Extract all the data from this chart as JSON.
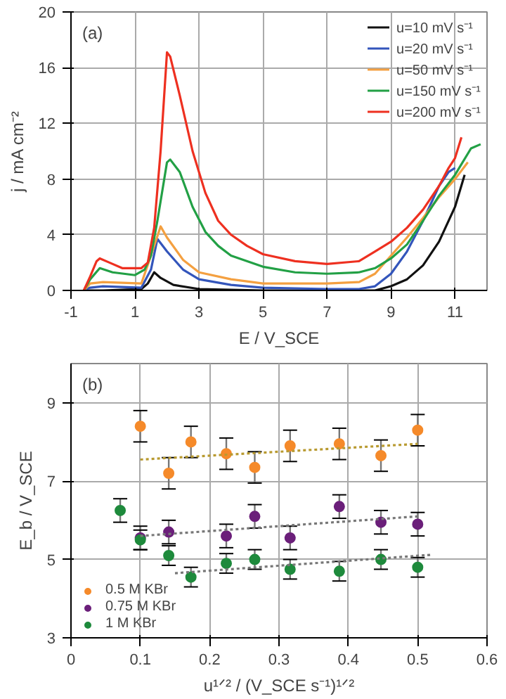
{
  "chart_data": [
    {
      "type": "line",
      "xlabel": "E / V_SCE",
      "ylabel": "j / mA cm⁻²",
      "annotations": [
        "(a)"
      ],
      "xlim": [
        -1,
        12
      ],
      "ylim": [
        0,
        20
      ],
      "xticks": [
        -1,
        1,
        3,
        5,
        7,
        9,
        11
      ],
      "yticks": [
        0,
        4,
        8,
        12,
        16,
        20
      ],
      "grid": true,
      "legend": "top right",
      "marker": "none",
      "line_style": "solid",
      "series": [
        {
          "name": "u=10 mV s⁻¹",
          "color": "#111111",
          "x": [
            -0.5,
            0,
            1.2,
            1.4,
            1.6,
            1.8,
            2.2,
            3,
            5,
            8.5,
            9,
            9.5,
            10,
            10.5,
            11,
            11.3
          ],
          "values": [
            0,
            0,
            0.1,
            0.5,
            1.3,
            0.9,
            0.4,
            0.1,
            0,
            0,
            0.3,
            0.8,
            1.8,
            3.5,
            6.0,
            8.3
          ]
        },
        {
          "name": "u=20 mV s⁻¹",
          "color": "#3355bb",
          "x": [
            -0.6,
            -0.4,
            0,
            1.2,
            1.5,
            1.7,
            2.0,
            2.5,
            3,
            4,
            5,
            7,
            8,
            8.5,
            9,
            9.5,
            10,
            10.5,
            10.8,
            11
          ],
          "values": [
            0,
            0.2,
            0.3,
            0.2,
            1.5,
            3.7,
            2.8,
            1.5,
            0.8,
            0.4,
            0.2,
            0.1,
            0.1,
            0.3,
            1.2,
            2.8,
            5.0,
            7.5,
            8.5,
            8.8
          ]
        },
        {
          "name": "u=50 mV s⁻¹",
          "color": "#f4a040",
          "x": [
            -0.6,
            -0.4,
            0,
            1.2,
            1.5,
            1.8,
            2.0,
            2.5,
            3,
            4,
            5,
            7,
            8,
            8.5,
            9,
            9.5,
            10,
            10.5,
            11,
            11.4
          ],
          "values": [
            0,
            0.5,
            0.6,
            0.5,
            2.5,
            4.6,
            3.8,
            2.2,
            1.3,
            0.8,
            0.5,
            0.5,
            0.6,
            1.2,
            2.5,
            3.8,
            5.2,
            6.7,
            8.0,
            9.2
          ]
        },
        {
          "name": "u=150 mV s⁻¹",
          "color": "#22a045",
          "x": [
            -0.6,
            -0.4,
            -0.1,
            0.3,
            1,
            1.3,
            1.5,
            1.7,
            2.0,
            2.1,
            2.4,
            2.8,
            3.2,
            3.6,
            4.0,
            5,
            6,
            7,
            8,
            8.5,
            9,
            9.5,
            10,
            10.5,
            11,
            11.5,
            11.8
          ],
          "values": [
            0,
            0.8,
            1.6,
            1.3,
            1.1,
            1.5,
            2.5,
            5,
            9.2,
            9.4,
            8.5,
            6,
            4.2,
            3.2,
            2.5,
            1.7,
            1.3,
            1.2,
            1.3,
            1.6,
            2.3,
            3.3,
            5.0,
            6.8,
            8.3,
            10.2,
            10.5
          ]
        },
        {
          "name": "u=200 mV s⁻¹",
          "color": "#ee3020",
          "x": [
            -0.6,
            -0.4,
            -0.2,
            -0.1,
            0.2,
            0.6,
            1.2,
            1.4,
            1.6,
            1.8,
            2.0,
            2.1,
            2.4,
            2.8,
            3.2,
            3.6,
            4.0,
            4.5,
            5,
            6,
            7,
            8,
            8.5,
            9,
            9.5,
            10,
            10.5,
            10.8,
            11.0,
            11.2
          ],
          "values": [
            0,
            1.0,
            2.1,
            2.3,
            2.0,
            1.6,
            1.6,
            2.0,
            4.5,
            10,
            17.1,
            16.8,
            14,
            10,
            7,
            5,
            4,
            3.2,
            2.6,
            2.1,
            1.9,
            2.1,
            2.8,
            3.5,
            4.5,
            5.8,
            7.5,
            8.8,
            9.5,
            11.0
          ]
        }
      ]
    },
    {
      "type": "scatter",
      "xlabel": "u¹ᐟ² / (V_SCE s⁻¹)¹ᐟ²",
      "ylabel": "E_b / V_SCE",
      "annotations": [
        "(b)"
      ],
      "xlim": [
        0,
        0.6
      ],
      "ylim": [
        3,
        10
      ],
      "xticks": [
        0,
        0.1,
        0.2,
        0.3,
        0.4,
        0.5,
        0.6
      ],
      "yticks": [
        3,
        5,
        7,
        9
      ],
      "grid": true,
      "legend": "bottom left",
      "marker": "circle",
      "series": [
        {
          "name": "0.5 M KBr",
          "color": "#f58a2a",
          "x": [
            0.1,
            0.141,
            0.173,
            0.224,
            0.265,
            0.316,
            0.387,
            0.447,
            0.5
          ],
          "values": [
            8.4,
            7.2,
            8.0,
            7.7,
            7.35,
            7.9,
            7.95,
            7.65,
            8.3
          ],
          "errors": [
            0.4,
            0.4,
            0.4,
            0.4,
            0.4,
            0.4,
            0.4,
            0.4,
            0.4
          ]
        },
        {
          "name": "0.75 M KBr",
          "color": "#6b1f7a",
          "x": [
            0.1,
            0.141,
            0.224,
            0.265,
            0.316,
            0.387,
            0.447,
            0.5
          ],
          "values": [
            5.55,
            5.7,
            5.6,
            6.1,
            5.55,
            6.35,
            5.95,
            5.9
          ],
          "errors": [
            0.3,
            0.3,
            0.3,
            0.3,
            0.3,
            0.3,
            0.3,
            0.3
          ]
        },
        {
          "name": "1 M KBr",
          "color": "#1e8a3c",
          "x": [
            0.071,
            0.1,
            0.141,
            0.173,
            0.224,
            0.265,
            0.316,
            0.387,
            0.447,
            0.5
          ],
          "values": [
            6.25,
            5.5,
            5.1,
            4.55,
            4.9,
            5.0,
            4.75,
            4.7,
            5.0,
            4.8
          ],
          "errors": [
            0.3,
            0.25,
            0.25,
            0.25,
            0.25,
            0.25,
            0.25,
            0.25,
            0.25,
            0.25
          ]
        },
        {
          "type": "line",
          "marker": "none",
          "line_style": "dotted",
          "color": "#b89a30",
          "x": [
            0.1,
            0.5
          ],
          "values": [
            7.55,
            7.95
          ]
        },
        {
          "type": "line",
          "marker": "none",
          "line_style": "dotted",
          "color": "#777777",
          "x": [
            0.1,
            0.5
          ],
          "values": [
            5.6,
            6.1
          ]
        },
        {
          "type": "line",
          "marker": "none",
          "line_style": "dotted",
          "color": "#777777",
          "x": [
            0.15,
            0.52
          ],
          "values": [
            4.65,
            5.12
          ]
        }
      ]
    }
  ]
}
